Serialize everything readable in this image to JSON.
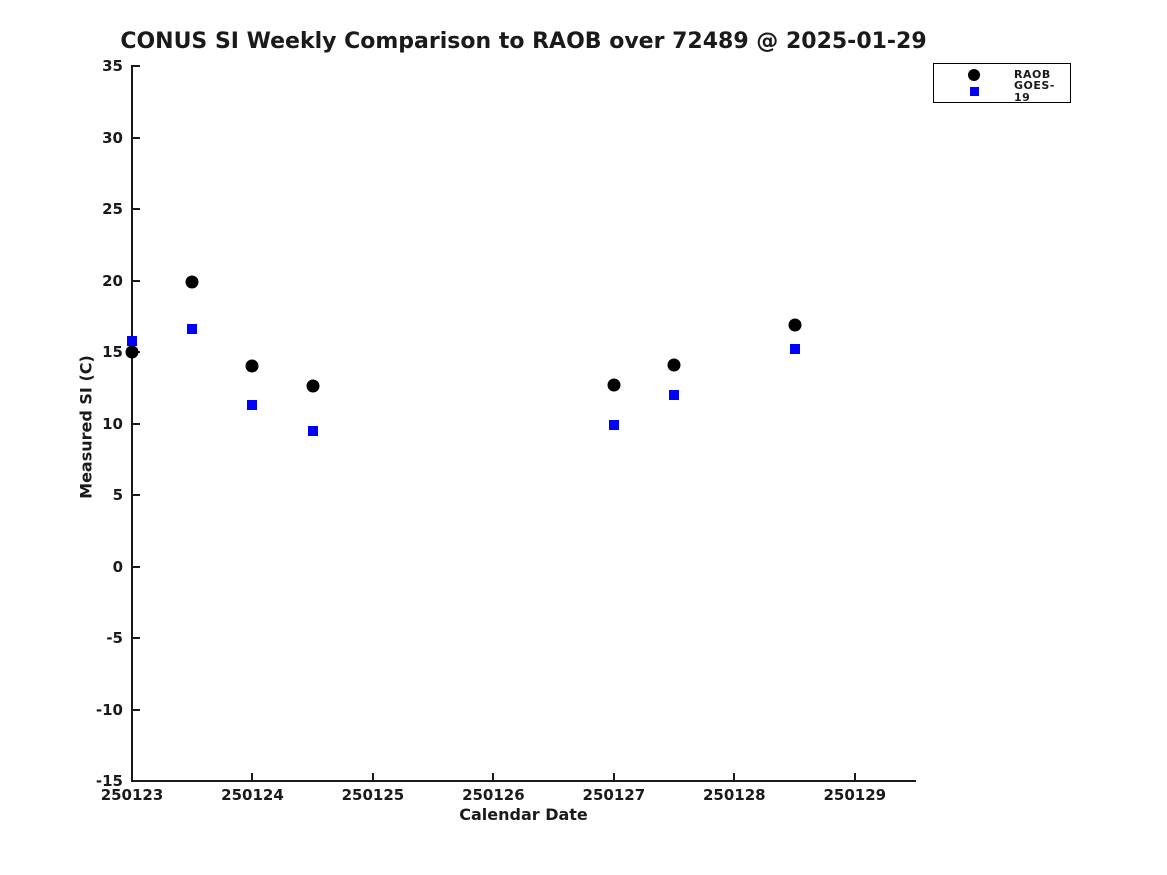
{
  "figure": {
    "title": "CONUS SI Weekly Comparison to RAOB over 72489 @ 2025-01-29"
  },
  "chart_data": {
    "type": "scatter",
    "title": "CONUS SI Weekly Comparison to RAOB over 72489 @ 2025-01-29",
    "xlabel": "Calendar Date",
    "ylabel": "Measured SI (C)",
    "xlim": [
      250123,
      250129.5
    ],
    "ylim": [
      -15,
      35
    ],
    "grid": false,
    "x_ticks": [
      250123,
      250124,
      250125,
      250126,
      250127,
      250128,
      250129
    ],
    "x_tick_labels": [
      "250123",
      "250124",
      "250125",
      "250126",
      "250127",
      "250128",
      "250129"
    ],
    "y_ticks": [
      -15,
      -10,
      -5,
      0,
      5,
      10,
      15,
      20,
      25,
      30,
      35
    ],
    "y_tick_labels": [
      "-15",
      "-10",
      "-5",
      "0",
      "5",
      "10",
      "15",
      "20",
      "25",
      "30",
      "35"
    ],
    "legend": {
      "position": "top-right",
      "border_color": "#000000",
      "items": [
        "RAOB",
        "GOES-19"
      ]
    },
    "series": [
      {
        "name": "RAOB",
        "marker": "circle",
        "color": "#000000",
        "x": [
          250123.0,
          250123.5,
          250124.0,
          250124.5,
          250127.0,
          250127.5,
          250128.5
        ],
        "y": [
          15.0,
          19.9,
          14.0,
          12.6,
          12.7,
          14.1,
          16.9
        ]
      },
      {
        "name": "GOES-19",
        "marker": "square",
        "color": "#0000ff",
        "x": [
          250123.0,
          250123.5,
          250124.0,
          250124.5,
          250127.0,
          250127.5,
          250128.5
        ],
        "y": [
          15.8,
          16.6,
          11.3,
          9.5,
          9.9,
          12.0,
          15.2
        ]
      }
    ],
    "colors": {
      "text": "#1a1a1a",
      "axis": "#1a1a1a",
      "background": "#ffffff"
    }
  }
}
